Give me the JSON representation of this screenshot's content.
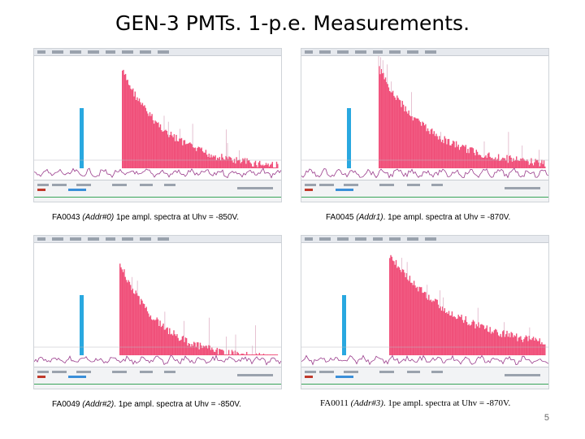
{
  "slide": {
    "title": "GEN-3 PMTs.   1-p.e. Measurements.",
    "page_number": "5"
  },
  "panels": [
    {
      "tube": "FA0043",
      "addr": "(Addr#0)",
      "desc": " 1pe ampl. spectra at Uhv = -850V."
    },
    {
      "tube": "FA0045",
      "addr": "(Addr1)",
      "desc": ". 1pe ampl. spectra at Uhv = -870V."
    },
    {
      "tube": "FA0049",
      "addr": "(Addr#2)",
      "desc": ". 1pe ampl. spectra at Uhv = -850V."
    },
    {
      "tube": "FA0011",
      "addr": "(Addr#3)",
      "desc": ". 1pe ampl. spectra at Uhv = -870V."
    }
  ],
  "colors": {
    "pedestal": "#29a8e0",
    "spectrum": "#f0507a",
    "trace": "#9a3c8c",
    "accent": "#3aa55a"
  }
}
